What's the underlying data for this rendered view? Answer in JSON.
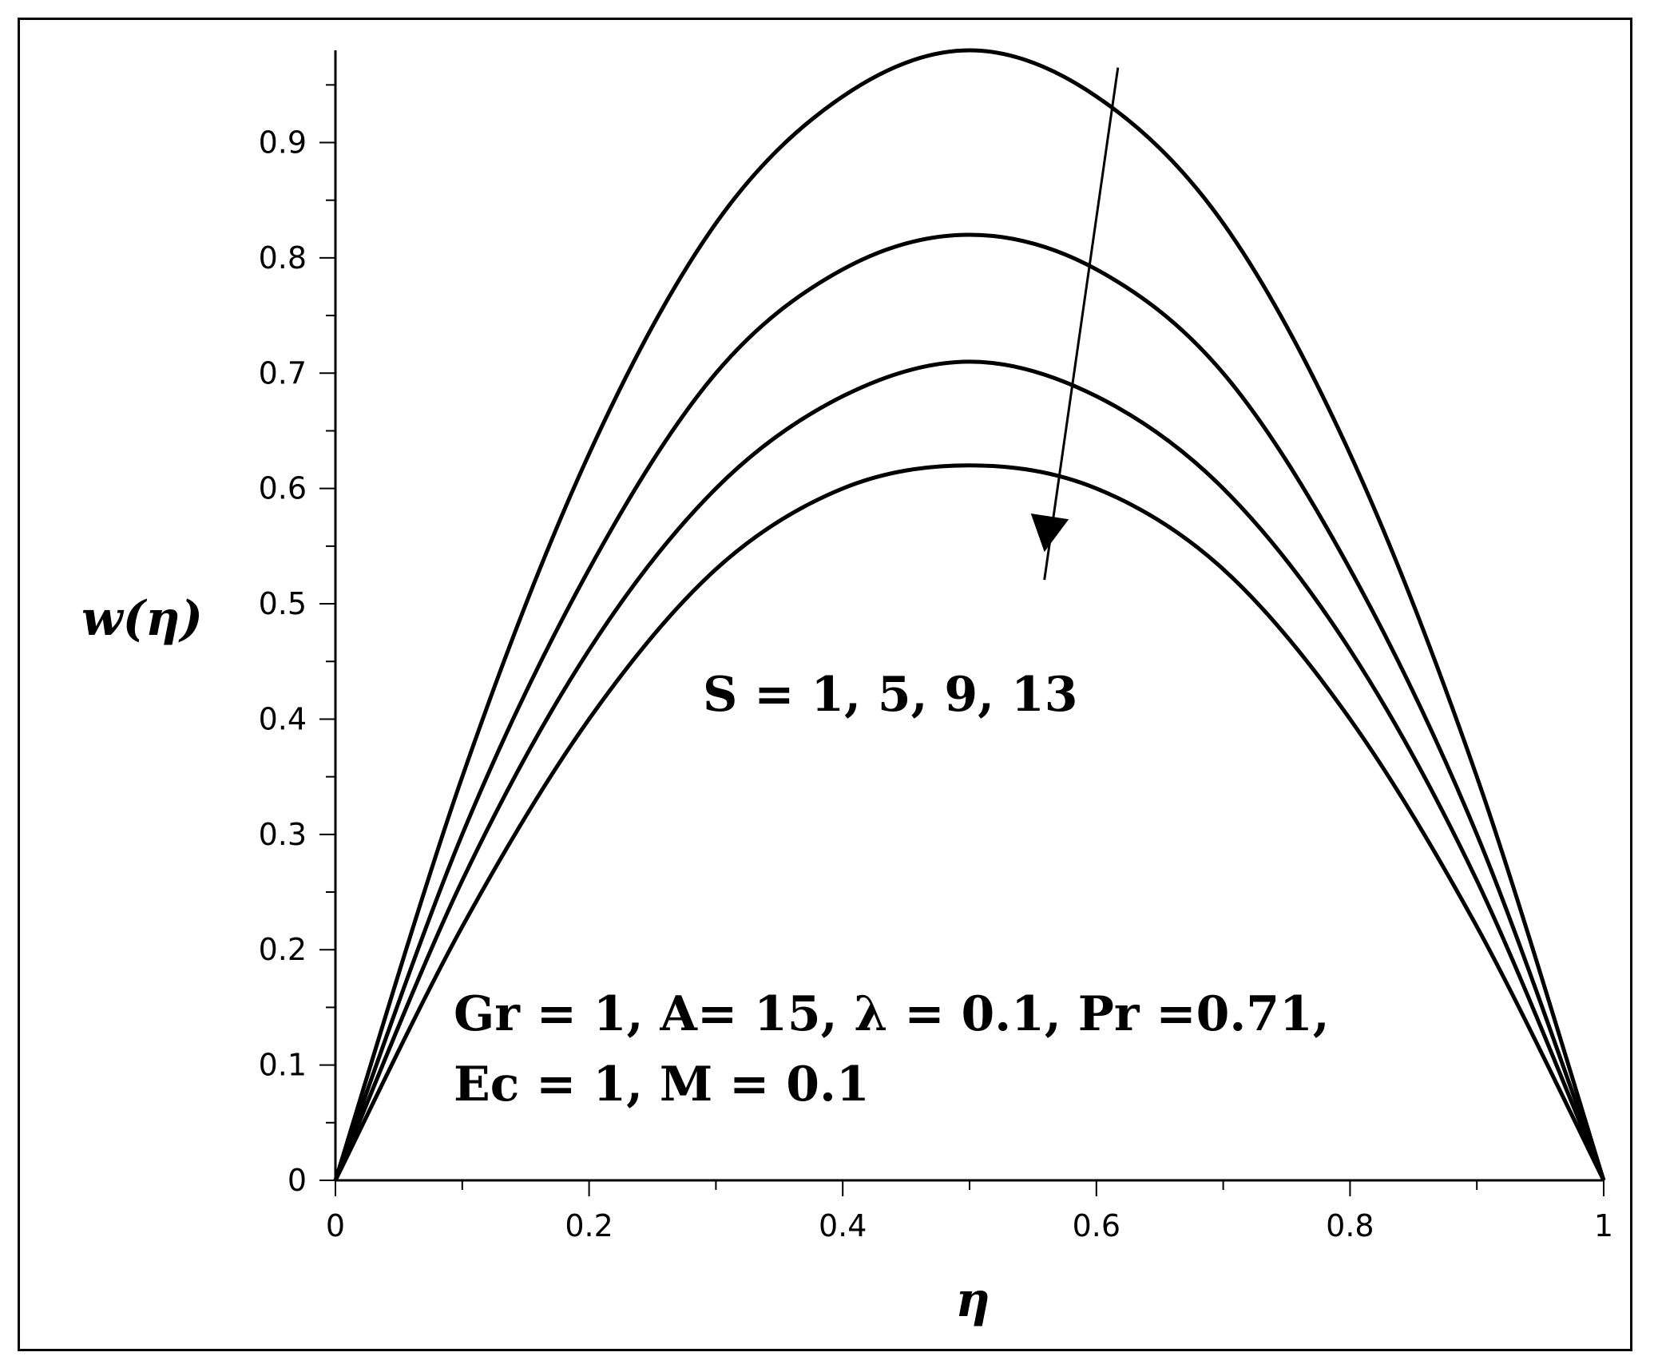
{
  "chart_data": {
    "type": "line",
    "xlabel": "η",
    "ylabel": "w(η)",
    "xlim": [
      0,
      1
    ],
    "ylim": [
      0,
      0.98
    ],
    "x_ticks": [
      0,
      0.2,
      0.4,
      0.6,
      0.8,
      1
    ],
    "x_tick_labels": [
      "0",
      "0.2",
      "0.4",
      "0.6",
      "0.8",
      "1"
    ],
    "y_ticks": [
      0,
      0.1,
      0.2,
      0.3,
      0.4,
      0.5,
      0.6,
      0.7,
      0.8,
      0.9
    ],
    "y_tick_labels": [
      "0",
      "0.1",
      "0.2",
      "0.3",
      "0.4",
      "0.5",
      "0.6",
      "0.7",
      "0.8",
      "0.9"
    ],
    "grid": false,
    "series": [
      {
        "x": [
          0,
          0.1,
          0.2,
          0.3,
          0.4,
          0.5,
          0.6,
          0.7,
          0.8,
          0.9,
          1
        ],
        "y": [
          0,
          0.35,
          0.63,
          0.83,
          0.94,
          0.98,
          0.94,
          0.83,
          0.63,
          0.35,
          0
        ]
      },
      {
        "x": [
          0,
          0.1,
          0.2,
          0.3,
          0.4,
          0.5,
          0.6,
          0.7,
          0.8,
          0.9,
          1
        ],
        "y": [
          0,
          0.3,
          0.53,
          0.7,
          0.79,
          0.82,
          0.79,
          0.7,
          0.53,
          0.3,
          0
        ]
      },
      {
        "x": [
          0,
          0.1,
          0.2,
          0.3,
          0.4,
          0.5,
          0.6,
          0.7,
          0.8,
          0.9,
          1
        ],
        "y": [
          0,
          0.26,
          0.46,
          0.6,
          0.68,
          0.71,
          0.68,
          0.6,
          0.46,
          0.26,
          0
        ]
      },
      {
        "x": [
          0,
          0.1,
          0.2,
          0.3,
          0.4,
          0.5,
          0.6,
          0.7,
          0.8,
          0.9,
          1
        ],
        "y": [
          0,
          0.22,
          0.4,
          0.53,
          0.6,
          0.62,
          0.6,
          0.53,
          0.4,
          0.22,
          0
        ]
      }
    ],
    "annotations": {
      "s_values": "S = 1, 5, 9, 13",
      "params_line1": "Gr = 1, A= 15, λ = 0.1, Pr =0.71,",
      "params_line2": "Ec = 1, M = 0.1"
    },
    "arrow": {
      "from": [
        0.617,
        0.965
      ],
      "to": [
        0.559,
        0.545
      ]
    },
    "line_color": "#000000"
  }
}
